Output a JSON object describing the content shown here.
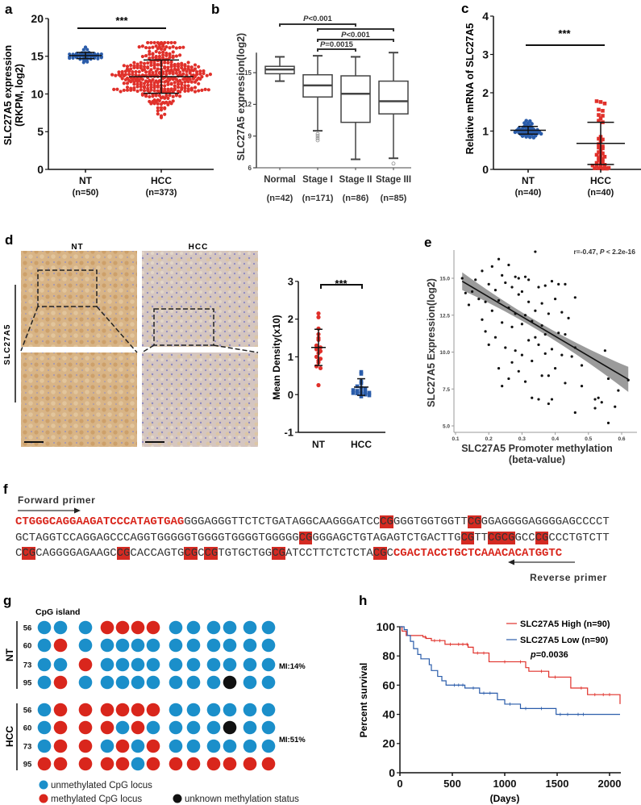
{
  "panel_labels": {
    "a": "a",
    "b": "b",
    "c": "c",
    "d": "d",
    "e": "e",
    "f": "f",
    "g": "g",
    "h": "h"
  },
  "colors": {
    "blue": "#2a5caa",
    "red": "#e0302a",
    "cpg_blue": "#1a8fc9",
    "cpg_red": "#d9261c",
    "black": "#111111"
  },
  "chart_data": [
    {
      "id": "a",
      "type": "scatter",
      "ylabel_lines": [
        "SLC27A5 expression",
        "(RKPM, log2)"
      ],
      "categories": [
        "NT",
        "HCC"
      ],
      "n_labels": [
        "(n=50)",
        "(n=373)"
      ],
      "ylim": [
        0,
        20
      ],
      "yticks": [
        0,
        5,
        10,
        15,
        20
      ],
      "significance": "***",
      "groups": [
        {
          "name": "NT",
          "n": 50,
          "mean": 15.1,
          "sd": 0.45,
          "min": 13.8,
          "max": 16.2
        },
        {
          "name": "HCC",
          "n": 373,
          "mean": 12.3,
          "sd": 2.2,
          "min": 5.2,
          "max": 16.8
        }
      ]
    },
    {
      "id": "b",
      "type": "box",
      "ylabel": "SLC27A5 expression(log2)",
      "categories": [
        "Normal",
        "Stage I",
        "Stage II",
        "Stage III"
      ],
      "n_labels": [
        "(n=42)",
        "(n=171)",
        "(n=86)",
        "(n=85)"
      ],
      "ylim": [
        6,
        17.5
      ],
      "yticks": [
        6,
        9,
        12,
        15
      ],
      "boxes": [
        {
          "whisker_low": 14.2,
          "q1": 14.9,
          "median": 15.3,
          "q3": 15.6,
          "whisker_high": 16.5,
          "outliers": []
        },
        {
          "whisker_low": 9.5,
          "q1": 12.7,
          "median": 13.8,
          "q3": 14.8,
          "whisker_high": 16.6,
          "outliers": [
            9.2,
            9.0,
            8.8,
            8.6
          ]
        },
        {
          "whisker_low": 6.8,
          "q1": 10.3,
          "median": 13.0,
          "q3": 14.7,
          "whisker_high": 16.5,
          "outliers": []
        },
        {
          "whisker_low": 6.9,
          "q1": 11.1,
          "median": 12.3,
          "q3": 14.2,
          "whisker_high": 16.9,
          "outliers": [
            6.4
          ]
        }
      ],
      "comparisons": [
        {
          "from": 0,
          "to": 2,
          "label": "P<0.001"
        },
        {
          "from": 1,
          "to": 3,
          "label": ""
        },
        {
          "from": 1,
          "to": 3,
          "label": "P<0.001"
        },
        {
          "from": 1,
          "to": 2,
          "label": "P=0.0015"
        }
      ]
    },
    {
      "id": "c",
      "type": "scatter",
      "ylabel": "Relative  mRNA of SLC27A5",
      "categories": [
        "NT",
        "HCC"
      ],
      "n_labels": [
        "(n=40)",
        "(n=40)"
      ],
      "ylim": [
        0,
        4
      ],
      "yticks": [
        0,
        1,
        2,
        3,
        4
      ],
      "significance": "***",
      "groups": [
        {
          "name": "NT",
          "mean": 1.02,
          "sd": 0.1,
          "values": [
            1.27,
            1.26,
            1.21,
            1.2,
            1.19,
            1.15,
            1.13,
            1.12,
            1.1,
            1.08,
            1.07,
            1.06,
            1.05,
            1.05,
            1.04,
            1.03,
            1.02,
            1.02,
            1.01,
            1.0,
            1.0,
            0.99,
            0.98,
            0.97,
            0.96,
            0.96,
            0.95,
            0.95,
            0.95,
            0.94,
            0.93,
            0.92,
            0.91,
            0.9,
            0.9,
            0.88,
            0.87,
            0.85,
            0.84,
            0.83
          ]
        },
        {
          "name": "HCC",
          "mean": 0.68,
          "sd": 0.55,
          "values": [
            1.78,
            1.76,
            1.72,
            1.56,
            1.53,
            1.42,
            1.4,
            1.33,
            1.27,
            1.23,
            0.85,
            0.8,
            0.78,
            0.72,
            0.66,
            0.6,
            0.57,
            0.55,
            0.48,
            0.45,
            0.42,
            0.38,
            0.35,
            0.33,
            0.3,
            0.27,
            0.24,
            0.2,
            0.17,
            0.15,
            0.12,
            0.1,
            0.08,
            0.06,
            0.05,
            0.04,
            0.03,
            0.03,
            0.02,
            0.02
          ]
        }
      ]
    },
    {
      "id": "d",
      "type": "scatter",
      "ihc": {
        "columns": [
          "NT",
          "HCC"
        ],
        "row_label": "SLC27A5"
      },
      "ylabel": "Mean Density(x10)",
      "categories": [
        "NT",
        "HCC"
      ],
      "ylim": [
        -1,
        3
      ],
      "yticks": [
        -1,
        0,
        1,
        2,
        3
      ],
      "significance": "***",
      "groups": [
        {
          "name": "NT",
          "mean": 1.25,
          "sd": 0.48,
          "values": [
            2.15,
            2.05,
            1.75,
            1.6,
            1.5,
            1.45,
            1.3,
            1.25,
            1.2,
            1.15,
            1.1,
            1.0,
            0.95,
            0.9,
            0.85,
            0.75,
            0.7,
            0.25
          ]
        },
        {
          "name": "HCC",
          "mean": 0.2,
          "sd": 0.22,
          "values": [
            0.6,
            0.55,
            0.35,
            0.3,
            0.22,
            0.18,
            0.15,
            0.12,
            0.1,
            0.08,
            0.06,
            0.05,
            0.04,
            0.03,
            0.02,
            0.0,
            -0.02,
            -0.05
          ]
        }
      ]
    },
    {
      "id": "e",
      "type": "scatter",
      "annotation_r": "r=-0.47, ",
      "annotation_p": "P",
      "annotation_rest": " < 2.2e-16",
      "ylabel": "SLC27A5 Expression(log2)",
      "xlabel_lines": [
        "SLC27A5 Promoter methylation",
        "(beta-value)"
      ],
      "xlim": [
        0.1,
        0.63
      ],
      "ylim": [
        5,
        17
      ],
      "xticks": [
        0.1,
        0.2,
        0.3,
        0.4,
        0.5,
        0.6
      ],
      "xtick_labels": [
        "0.1",
        "0.2",
        "0.3",
        "0.4",
        "0.5",
        "0.6"
      ],
      "yticks": [
        5,
        7.5,
        10,
        12.5,
        15
      ],
      "ytick_labels": [
        "5.0",
        "7.5",
        "10.0",
        "12.5",
        "15.0"
      ],
      "fit": {
        "x": [
          0.12,
          0.62
        ],
        "y": [
          14.8,
          8.15
        ],
        "ci_halfwidth_ends": [
          0.6,
          0.85
        ],
        "ci_halfwidth_mid": 0.2
      },
      "points": [
        [
          0.12,
          15.0
        ],
        [
          0.13,
          14.0
        ],
        [
          0.14,
          13.2
        ],
        [
          0.15,
          14.1
        ],
        [
          0.16,
          14.9
        ],
        [
          0.17,
          13.6
        ],
        [
          0.18,
          15.5
        ],
        [
          0.18,
          12.2
        ],
        [
          0.19,
          11.4
        ],
        [
          0.19,
          13.4
        ],
        [
          0.2,
          14.6
        ],
        [
          0.2,
          10.5
        ],
        [
          0.21,
          15.8
        ],
        [
          0.21,
          12.8
        ],
        [
          0.22,
          14.2
        ],
        [
          0.22,
          11.0
        ],
        [
          0.23,
          16.3
        ],
        [
          0.23,
          13.5
        ],
        [
          0.23,
          8.9
        ],
        [
          0.24,
          15.2
        ],
        [
          0.24,
          12.0
        ],
        [
          0.24,
          7.7
        ],
        [
          0.25,
          14.7
        ],
        [
          0.25,
          10.3
        ],
        [
          0.26,
          15.9
        ],
        [
          0.26,
          13.0
        ],
        [
          0.26,
          8.2
        ],
        [
          0.27,
          14.4
        ],
        [
          0.27,
          11.7
        ],
        [
          0.27,
          9.3
        ],
        [
          0.28,
          15.1
        ],
        [
          0.28,
          12.6
        ],
        [
          0.28,
          10.1
        ],
        [
          0.29,
          13.9
        ],
        [
          0.29,
          8.7
        ],
        [
          0.29,
          15.0
        ],
        [
          0.3,
          14.1
        ],
        [
          0.3,
          11.9
        ],
        [
          0.3,
          9.8
        ],
        [
          0.31,
          12.5
        ],
        [
          0.31,
          15.1
        ],
        [
          0.31,
          8.0
        ],
        [
          0.32,
          13.4
        ],
        [
          0.32,
          10.8
        ],
        [
          0.32,
          14.9
        ],
        [
          0.33,
          12.1
        ],
        [
          0.33,
          6.9
        ],
        [
          0.33,
          9.4
        ],
        [
          0.34,
          16.8
        ],
        [
          0.34,
          12.8
        ],
        [
          0.34,
          11.0
        ],
        [
          0.35,
          14.4
        ],
        [
          0.35,
          10.5
        ],
        [
          0.35,
          6.8
        ],
        [
          0.36,
          13.3
        ],
        [
          0.36,
          8.4
        ],
        [
          0.36,
          11.8
        ],
        [
          0.37,
          14.5
        ],
        [
          0.37,
          9.9
        ],
        [
          0.37,
          11.2
        ],
        [
          0.38,
          12.6
        ],
        [
          0.38,
          6.5
        ],
        [
          0.38,
          8.4
        ],
        [
          0.39,
          14.8
        ],
        [
          0.39,
          6.8
        ],
        [
          0.39,
          10.2
        ],
        [
          0.4,
          13.6
        ],
        [
          0.4,
          8.9
        ],
        [
          0.41,
          11.3
        ],
        [
          0.41,
          14.6
        ],
        [
          0.42,
          12.7
        ],
        [
          0.42,
          9.8
        ],
        [
          0.43,
          14.6
        ],
        [
          0.43,
          11.2
        ],
        [
          0.43,
          7.9
        ],
        [
          0.44,
          12.3
        ],
        [
          0.45,
          9.7
        ],
        [
          0.46,
          13.7
        ],
        [
          0.46,
          10.3
        ],
        [
          0.46,
          5.9
        ],
        [
          0.48,
          9.1
        ],
        [
          0.48,
          7.7
        ],
        [
          0.52,
          6.8
        ],
        [
          0.52,
          6.2
        ],
        [
          0.53,
          6.9
        ],
        [
          0.54,
          6.6
        ],
        [
          0.55,
          10.1
        ],
        [
          0.56,
          8.2
        ],
        [
          0.56,
          5.2
        ],
        [
          0.58,
          6.3
        ],
        [
          0.59,
          7.4
        ],
        [
          0.62,
          8.1
        ]
      ]
    },
    {
      "id": "h",
      "type": "line",
      "ylabel": "Percent survival",
      "xlabel": "(Days)",
      "xlim": [
        0,
        2100
      ],
      "ylim": [
        0,
        100
      ],
      "xticks": [
        0,
        500,
        1000,
        1500,
        2000
      ],
      "yticks": [
        0,
        20,
        40,
        60,
        80,
        100
      ],
      "p_prefix": "p",
      "p_value": "=0.0036",
      "series": [
        {
          "name": "SLC27A5 High (n=90)",
          "color": "#e0302a",
          "steps": [
            [
              0,
              100
            ],
            [
              20,
              97
            ],
            [
              60,
              94
            ],
            [
              220,
              93
            ],
            [
              250,
              92
            ],
            [
              300,
              90.5
            ],
            [
              430,
              88
            ],
            [
              650,
              86
            ],
            [
              700,
              82
            ],
            [
              850,
              76
            ],
            [
              1200,
              72
            ],
            [
              1230,
              69.5
            ],
            [
              1420,
              65.5
            ],
            [
              1630,
              58
            ],
            [
              1790,
              53.5
            ],
            [
              2100,
              47
            ]
          ],
          "censor": [
            240,
            330,
            380,
            480,
            560,
            600,
            640,
            740,
            800,
            1000,
            1150,
            1350,
            1480,
            1730,
            1860,
            1940,
            2000
          ]
        },
        {
          "name": "SLC27A5 Low (n=90)",
          "color": "#2a5caa",
          "steps": [
            [
              0,
              100
            ],
            [
              40,
              98
            ],
            [
              70,
              94
            ],
            [
              100,
              90
            ],
            [
              130,
              85
            ],
            [
              170,
              81
            ],
            [
              200,
              78
            ],
            [
              280,
              74
            ],
            [
              300,
              70
            ],
            [
              360,
              66
            ],
            [
              400,
              63
            ],
            [
              440,
              60
            ],
            [
              620,
              58
            ],
            [
              760,
              54.5
            ],
            [
              930,
              50
            ],
            [
              1000,
              47
            ],
            [
              1150,
              44
            ],
            [
              1490,
              40
            ],
            [
              2100,
              40
            ]
          ],
          "censor": [
            520,
            560,
            600,
            700,
            800,
            860,
            1050,
            1200,
            1350,
            1530,
            1600,
            1700,
            1750
          ]
        }
      ]
    }
  ],
  "sequence": {
    "forward_label": "Forward primer",
    "reverse_label": "Reverse primer",
    "lines": [
      [
        {
          "t": "CTGGGCAGGAAGATCCCATAGTGAG",
          "k": "primer"
        },
        {
          "t": "GGGAGGGTTCTCTGATAGGCAAGGGATCC",
          "k": "n"
        },
        {
          "t": "CG",
          "k": "cpg"
        },
        {
          "t": "GGGTGGTGGTT",
          "k": "n"
        },
        {
          "t": "CG",
          "k": "cpg"
        },
        {
          "t": "GGAGGGGAGGGGAGCCCCT",
          "k": "n"
        }
      ],
      [
        {
          "t": "GCTAGGTCCAGGAGCCCAGGTGGGGGTGGGGTGGGGTGGGGG",
          "k": "n"
        },
        {
          "t": "CG",
          "k": "cpg"
        },
        {
          "t": "GGGAGCTGTAGAGTCTGACTTG",
          "k": "n"
        },
        {
          "t": "CG",
          "k": "cpg"
        },
        {
          "t": "TT",
          "k": "n"
        },
        {
          "t": "CGCG",
          "k": "cpg"
        },
        {
          "t": "GCC",
          "k": "n"
        },
        {
          "t": "CG",
          "k": "cpg"
        },
        {
          "t": "CCCTGTCTT",
          "k": "n"
        }
      ],
      [
        {
          "t": "C",
          "k": "n"
        },
        {
          "t": "CG",
          "k": "cpg"
        },
        {
          "t": "CAGGGGAGAAGC",
          "k": "n"
        },
        {
          "t": "CG",
          "k": "cpg"
        },
        {
          "t": "CACCAGTG",
          "k": "n"
        },
        {
          "t": "CG",
          "k": "cpg"
        },
        {
          "t": "C",
          "k": "n"
        },
        {
          "t": "CG",
          "k": "cpg"
        },
        {
          "t": "TGTGCTGG",
          "k": "n"
        },
        {
          "t": "CG",
          "k": "cpg"
        },
        {
          "t": "ATCCTTCTCTCTA",
          "k": "n"
        },
        {
          "t": "CG",
          "k": "cpg"
        },
        {
          "t": "C",
          "k": "n"
        },
        {
          "t": "CGACTACCTGCTCAAACACATGGTC",
          "k": "primer"
        }
      ]
    ]
  },
  "methylation": {
    "title": "CpG island",
    "groups": [
      {
        "name": "NT",
        "mi": "MI:14%",
        "rows": [
          {
            "id": "56",
            "s": "UUUMMMMUUUUUU"
          },
          {
            "id": "60",
            "s": "UMUUUUUUUUUUU"
          },
          {
            "id": "73",
            "s": "UUMUUUUUUUUUU"
          },
          {
            "id": "95",
            "s": "UMUUUUUUUUXUU"
          }
        ]
      },
      {
        "name": "HCC",
        "mi": "MI:51%",
        "rows": [
          {
            "id": "56",
            "s": "UMMMMMMUUUUUU"
          },
          {
            "id": "60",
            "s": "UMMMUMUUUUXUU"
          },
          {
            "id": "73",
            "s": "UMMUMUMUUUUUU"
          },
          {
            "id": "95",
            "s": "MMMMMUMMMMMMM"
          }
        ]
      }
    ],
    "legend": {
      "unmethylated": "unmethylated CpG locus",
      "methylated": "methylated CpG locus",
      "unknown": "unknown methylation status"
    }
  }
}
